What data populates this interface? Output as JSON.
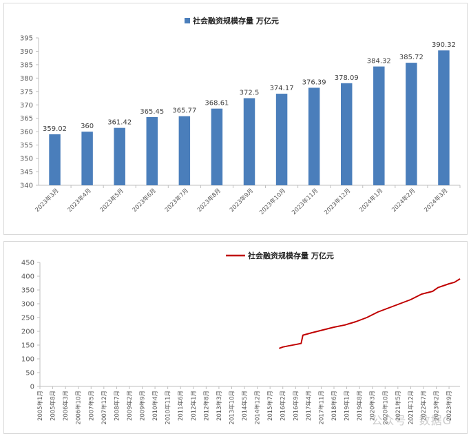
{
  "chart_data": [
    {
      "type": "bar",
      "legend": "社会融资规模存量 万亿元",
      "legend_position": "top-center",
      "color": "#4a7ebb",
      "categories": [
        "2023年3月",
        "2023年4月",
        "2023年5月",
        "2023年6月",
        "2023年7月",
        "2023年8月",
        "2023年9月",
        "2023年10月",
        "2023年11月",
        "2023年12月",
        "2024年1月",
        "2024年2月",
        "2024年3月"
      ],
      "values": [
        359.02,
        360,
        361.42,
        365.45,
        365.77,
        368.61,
        372.5,
        374.17,
        376.39,
        378.09,
        384.32,
        385.72,
        390.32
      ],
      "ylim": [
        340,
        395
      ],
      "yticks": [
        340,
        345,
        350,
        355,
        360,
        365,
        370,
        375,
        380,
        385,
        390,
        395
      ],
      "grid": false
    },
    {
      "type": "line",
      "legend": "社会融资规模存量 万亿元",
      "legend_position": "top-center",
      "color": "#c00000",
      "x_tick_labels": [
        "2005年1月",
        "2005年8月",
        "2006年3月",
        "2006年10月",
        "2007年5月",
        "2007年12月",
        "2008年7月",
        "2009年2月",
        "2009年9月",
        "2010年4月",
        "2010年11月",
        "2011年6月",
        "2012年1月",
        "2012年8月",
        "2013年3月",
        "2013年10月",
        "2014年5月",
        "2014年12月",
        "2015年7月",
        "2016年2月",
        "2016年9月",
        "2017年4月",
        "2017年11月",
        "2018年6月",
        "2019年1月",
        "2019年8月",
        "2020年3月",
        "2020年10月",
        "2021年5月",
        "2021年12月",
        "2022年7月",
        "2023年2月",
        "2023年9月"
      ],
      "series_points": [
        {
          "x": "2015年12月",
          "y": 138
        },
        {
          "x": "2016年2月",
          "y": 143
        },
        {
          "x": "2016年5月",
          "y": 147
        },
        {
          "x": "2016年9月",
          "y": 152
        },
        {
          "x": "2016年12月",
          "y": 156
        },
        {
          "x": "2017年1月",
          "y": 186
        },
        {
          "x": "2017年6月",
          "y": 195
        },
        {
          "x": "2017年12月",
          "y": 205
        },
        {
          "x": "2018年6月",
          "y": 215
        },
        {
          "x": "2018年12月",
          "y": 223
        },
        {
          "x": "2019年6月",
          "y": 235
        },
        {
          "x": "2019年12月",
          "y": 250
        },
        {
          "x": "2020年6月",
          "y": 270
        },
        {
          "x": "2020年12月",
          "y": 285
        },
        {
          "x": "2021年6月",
          "y": 300
        },
        {
          "x": "2021年12月",
          "y": 315
        },
        {
          "x": "2022年6月",
          "y": 335
        },
        {
          "x": "2022年12月",
          "y": 345
        },
        {
          "x": "2023年3月",
          "y": 359
        },
        {
          "x": "2023年9月",
          "y": 372.5
        },
        {
          "x": "2023年12月",
          "y": 378
        },
        {
          "x": "2024年3月",
          "y": 390.3
        }
      ],
      "x_range": [
        "2005年1月",
        "2024年3月"
      ],
      "ylim": [
        0,
        450
      ],
      "yticks": [
        0,
        50,
        100,
        150,
        200,
        250,
        300,
        350,
        400,
        450
      ],
      "grid": false
    }
  ],
  "watermark": "公众号 · 数据G"
}
